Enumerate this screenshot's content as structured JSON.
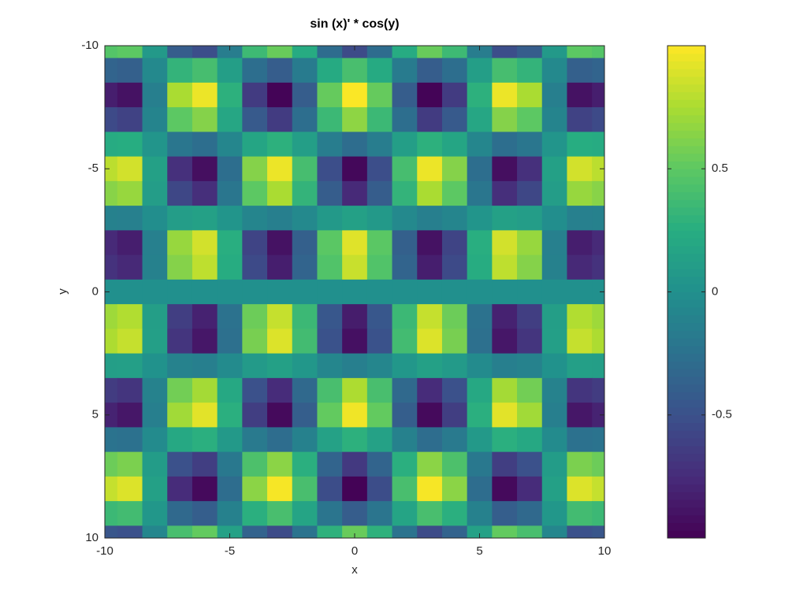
{
  "chart_data": {
    "type": "heatmap",
    "title": "sin (x)' * cos(y)",
    "xlabel": "x",
    "ylabel": "y",
    "x": [
      -10,
      -9,
      -8,
      -7,
      -6,
      -5,
      -4,
      -3,
      -2,
      -1,
      0,
      1,
      2,
      3,
      4,
      5,
      6,
      7,
      8,
      9,
      10
    ],
    "y": [
      -10,
      -9,
      -8,
      -7,
      -6,
      -5,
      -4,
      -3,
      -2,
      -1,
      0,
      1,
      2,
      3,
      4,
      5,
      6,
      7,
      8,
      9,
      10
    ],
    "z": [
      [
        0.46,
        0.5,
        0.08,
        -0.41,
        -0.52,
        -0.15,
        0.36,
        0.54,
        0.23,
        -0.29,
        -0.54,
        -0.29,
        0.23,
        0.54,
        0.36,
        -0.15,
        -0.52,
        -0.41,
        0.08,
        0.5,
        0.46
      ],
      [
        -0.35,
        -0.38,
        -0.06,
        0.31,
        0.4,
        0.12,
        -0.27,
        -0.41,
        -0.17,
        0.22,
        0.41,
        0.22,
        -0.17,
        -0.41,
        -0.27,
        0.12,
        0.4,
        0.31,
        -0.06,
        -0.38,
        -0.35
      ],
      [
        -0.83,
        -0.9,
        -0.14,
        0.75,
        0.95,
        0.28,
        -0.65,
        -0.98,
        -0.41,
        0.53,
        0.99,
        0.53,
        -0.41,
        -0.98,
        -0.65,
        0.28,
        0.95,
        0.75,
        -0.14,
        -0.9,
        -0.83
      ],
      [
        -0.55,
        -0.6,
        -0.1,
        0.5,
        0.63,
        0.19,
        -0.43,
        -0.65,
        -0.27,
        0.35,
        0.66,
        0.35,
        -0.27,
        -0.65,
        -0.43,
        0.19,
        0.63,
        0.5,
        -0.1,
        -0.6,
        -0.55
      ],
      [
        0.23,
        0.25,
        0.04,
        -0.21,
        -0.27,
        -0.08,
        0.18,
        0.28,
        0.12,
        -0.15,
        -0.28,
        -0.15,
        0.12,
        0.28,
        0.18,
        -0.08,
        -0.27,
        -0.21,
        0.04,
        0.25,
        0.23
      ],
      [
        0.8,
        0.87,
        0.14,
        -0.72,
        -0.92,
        -0.27,
        0.63,
        0.95,
        0.4,
        -0.52,
        -0.96,
        -0.52,
        0.4,
        0.95,
        0.63,
        -0.27,
        -0.92,
        -0.72,
        0.14,
        0.87,
        0.8
      ],
      [
        0.64,
        0.69,
        0.11,
        -0.57,
        -0.73,
        -0.21,
        0.5,
        0.75,
        0.31,
        -0.41,
        -0.76,
        -0.41,
        0.31,
        0.75,
        0.5,
        -0.21,
        -0.73,
        -0.57,
        0.11,
        0.69,
        0.64
      ],
      [
        -0.12,
        -0.13,
        -0.02,
        0.11,
        0.14,
        0.04,
        -0.09,
        -0.14,
        -0.06,
        0.08,
        0.14,
        0.08,
        -0.06,
        -0.14,
        -0.09,
        0.04,
        0.14,
        0.11,
        -0.02,
        -0.13,
        -0.12
      ],
      [
        -0.76,
        -0.83,
        -0.13,
        0.69,
        0.87,
        0.26,
        -0.59,
        -0.9,
        -0.38,
        0.49,
        0.91,
        0.49,
        -0.38,
        -0.9,
        -0.59,
        0.26,
        0.87,
        0.69,
        -0.13,
        -0.83,
        -0.76
      ],
      [
        -0.71,
        -0.77,
        -0.12,
        0.63,
        0.81,
        0.24,
        -0.55,
        -0.83,
        -0.35,
        0.45,
        0.84,
        0.45,
        -0.35,
        -0.83,
        -0.55,
        0.24,
        0.81,
        0.63,
        -0.12,
        -0.77,
        -0.71
      ],
      [
        0,
        0,
        0,
        0,
        0,
        0,
        0,
        0,
        0,
        0,
        0,
        0,
        0,
        0,
        0,
        0,
        0,
        0,
        0,
        0,
        0
      ],
      [
        0.71,
        0.77,
        0.12,
        -0.63,
        -0.81,
        -0.24,
        0.55,
        0.83,
        0.35,
        -0.45,
        -0.84,
        -0.45,
        0.35,
        0.83,
        0.55,
        -0.24,
        -0.81,
        -0.63,
        0.12,
        0.77,
        0.71
      ],
      [
        0.76,
        0.83,
        0.13,
        -0.69,
        -0.87,
        -0.26,
        0.59,
        0.9,
        0.38,
        -0.49,
        -0.91,
        -0.49,
        0.38,
        0.9,
        0.59,
        -0.26,
        -0.87,
        -0.69,
        0.13,
        0.83,
        0.76
      ],
      [
        0.12,
        0.13,
        0.02,
        -0.11,
        -0.14,
        -0.04,
        0.09,
        0.14,
        0.06,
        -0.08,
        -0.14,
        -0.08,
        0.06,
        0.14,
        0.09,
        -0.04,
        -0.14,
        -0.11,
        0.02,
        0.13,
        0.12
      ],
      [
        -0.64,
        -0.69,
        -0.11,
        0.57,
        0.73,
        0.21,
        -0.5,
        -0.75,
        -0.31,
        0.41,
        0.76,
        0.41,
        -0.31,
        -0.75,
        -0.5,
        0.21,
        0.73,
        0.57,
        -0.11,
        -0.69,
        -0.64
      ],
      [
        -0.8,
        -0.87,
        -0.14,
        0.72,
        0.92,
        0.27,
        -0.63,
        -0.95,
        -0.4,
        0.52,
        0.96,
        0.52,
        -0.4,
        -0.95,
        -0.63,
        0.27,
        0.92,
        0.72,
        -0.14,
        -0.87,
        -0.8
      ],
      [
        -0.23,
        -0.25,
        -0.04,
        0.21,
        0.27,
        0.08,
        -0.18,
        -0.28,
        -0.12,
        0.15,
        0.28,
        0.15,
        -0.12,
        -0.28,
        -0.18,
        0.08,
        0.27,
        0.21,
        -0.04,
        -0.25,
        -0.23
      ],
      [
        0.55,
        0.6,
        0.1,
        -0.5,
        -0.63,
        -0.19,
        0.43,
        0.65,
        0.27,
        -0.35,
        -0.66,
        -0.35,
        0.27,
        0.65,
        0.43,
        -0.19,
        -0.63,
        -0.5,
        0.1,
        0.6,
        0.55
      ],
      [
        0.83,
        0.9,
        0.14,
        -0.75,
        -0.95,
        -0.28,
        0.65,
        0.98,
        0.41,
        -0.53,
        -0.99,
        -0.53,
        0.41,
        0.98,
        0.65,
        -0.28,
        -0.95,
        -0.75,
        0.14,
        0.9,
        0.83
      ],
      [
        0.35,
        0.38,
        0.06,
        -0.31,
        -0.4,
        -0.12,
        0.27,
        0.41,
        0.17,
        -0.22,
        -0.41,
        -0.22,
        0.17,
        0.41,
        0.27,
        -0.12,
        -0.4,
        -0.31,
        0.06,
        0.38,
        0.35
      ],
      [
        -0.46,
        -0.5,
        -0.08,
        0.41,
        0.52,
        0.15,
        -0.36,
        -0.54,
        -0.23,
        0.29,
        0.54,
        0.29,
        -0.23,
        -0.54,
        -0.36,
        0.15,
        0.52,
        0.41,
        -0.08,
        -0.5,
        -0.46
      ]
    ],
    "xlim": [
      -10,
      10
    ],
    "ylim": [
      -10,
      10
    ],
    "y_reversed": true,
    "xticks": [
      -10,
      -5,
      0,
      5,
      10
    ],
    "yticks": [
      -10,
      -5,
      0,
      5,
      10
    ],
    "clim": [
      -1,
      1
    ],
    "cticks": [
      -0.5,
      0,
      0.5
    ],
    "colormap": [
      "#440154",
      "#472c7a",
      "#3b518b",
      "#2c718e",
      "#21908d",
      "#27ad81",
      "#5cc863",
      "#aadc32",
      "#fde725"
    ],
    "colorbar": true
  }
}
